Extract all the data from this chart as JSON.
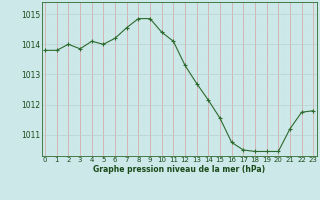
{
  "x": [
    0,
    1,
    2,
    3,
    4,
    5,
    6,
    7,
    8,
    9,
    10,
    11,
    12,
    13,
    14,
    15,
    16,
    17,
    18,
    19,
    20,
    21,
    22,
    23
  ],
  "y": [
    1013.8,
    1013.8,
    1014.0,
    1013.85,
    1014.1,
    1014.0,
    1014.2,
    1014.55,
    1014.85,
    1014.85,
    1014.4,
    1014.1,
    1013.3,
    1012.7,
    1012.15,
    1011.55,
    1010.75,
    1010.5,
    1010.45,
    1010.45,
    1010.45,
    1011.2,
    1011.75,
    1011.8
  ],
  "line_color": "#2d6a2d",
  "marker_color": "#2d6a2d",
  "bg_color": "#cce8e8",
  "grid_color_major": "#b8d0d0",
  "grid_color_minor": "#d0e4e4",
  "xlabel": "Graphe pression niveau de la mer (hPa)",
  "xlabel_color": "#1a4a1a",
  "ylim": [
    1010.3,
    1015.4
  ],
  "yticks": [
    1011,
    1012,
    1013,
    1014,
    1015
  ],
  "tick_label_color": "#1a4a1a",
  "axis_color": "#2d6a2d",
  "figsize": [
    3.2,
    2.0
  ],
  "dpi": 100
}
